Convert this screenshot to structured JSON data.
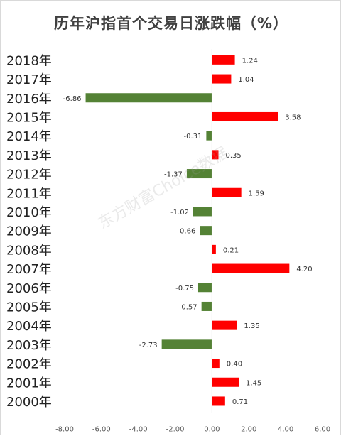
{
  "chart_data": {
    "type": "bar",
    "orientation": "horizontal",
    "title": "历年沪指首个交易日涨跌幅（%）",
    "watermark": "东方财富Choice数据",
    "categories": [
      "2018年",
      "2017年",
      "2016年",
      "2015年",
      "2014年",
      "2013年",
      "2012年",
      "2011年",
      "2010年",
      "2009年",
      "2008年",
      "2007年",
      "2006年",
      "2005年",
      "2004年",
      "2003年",
      "2002年",
      "2001年",
      "2000年"
    ],
    "values": [
      1.24,
      1.04,
      -6.86,
      3.58,
      -0.31,
      0.35,
      -1.37,
      1.59,
      -1.02,
      -0.66,
      0.21,
      4.2,
      -0.75,
      -0.57,
      1.35,
      -2.73,
      0.4,
      1.45,
      0.71
    ],
    "value_labels": [
      "1.24",
      "1.04",
      "-6.86",
      "3.58",
      "-0.31",
      "0.35",
      "-1.37",
      "1.59",
      "-1.02",
      "-0.66",
      "0.21",
      "4.20",
      "-0.75",
      "-0.57",
      "1.35",
      "-2.73",
      "0.40",
      "1.45",
      "0.71"
    ],
    "xlim": [
      -8,
      6
    ],
    "x_ticks": [
      -8,
      -6,
      -4,
      -2,
      0,
      2,
      4,
      6
    ],
    "x_tick_labels": [
      "-8.00",
      "-6.00",
      "-4.00",
      "-2.00",
      "0.00",
      "2.00",
      "4.00",
      "6.00"
    ],
    "colors": {
      "positive": "#ff0000",
      "negative": "#548235"
    },
    "grid": false,
    "legend": "none"
  }
}
